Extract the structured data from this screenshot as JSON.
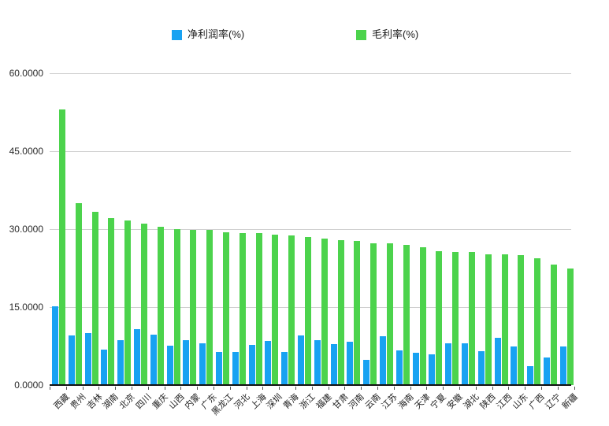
{
  "legend": {
    "items": [
      {
        "label": "净利润率(%)",
        "color": "#18a2f2"
      },
      {
        "label": "毛利率(%)",
        "color": "#4cd34c"
      }
    ]
  },
  "chart_data": {
    "type": "bar",
    "title": "",
    "xlabel": "",
    "ylabel": "",
    "ylim": [
      0,
      60
    ],
    "y_ticks": [
      "60.0000",
      "45.0000",
      "30.0000",
      "15.0000",
      "0.0000"
    ],
    "grid": true,
    "legend_position": "top",
    "categories": [
      "西藏",
      "贵州",
      "吉林",
      "湖南",
      "北京",
      "四川",
      "重庆",
      "山西",
      "内蒙",
      "广东",
      "黑龙江",
      "河北",
      "上海",
      "深圳",
      "青海",
      "浙江",
      "福建",
      "甘肃",
      "河南",
      "云南",
      "江苏",
      "海南",
      "天津",
      "宁夏",
      "安徽",
      "湖北",
      "陕西",
      "江西",
      "山东",
      "广西",
      "辽宁",
      "新疆"
    ],
    "series": [
      {
        "name": "净利润率(%)",
        "color": "#18a2f2",
        "values": [
          15.2,
          9.6,
          10.0,
          6.8,
          8.7,
          10.7,
          9.7,
          7.6,
          8.7,
          8.0,
          6.3,
          6.4,
          7.7,
          8.5,
          6.4,
          9.5,
          8.6,
          7.9,
          8.3,
          4.8,
          9.4,
          6.6,
          6.2,
          5.9,
          8.1,
          8.0,
          6.5,
          9.1,
          7.5,
          3.6,
          5.3,
          7.4
        ]
      },
      {
        "name": "毛利率(%)",
        "color": "#4cd34c",
        "values": [
          53.0,
          35.0,
          33.4,
          32.1,
          31.7,
          31.1,
          30.4,
          30.0,
          29.9,
          29.8,
          29.4,
          29.2,
          29.2,
          28.9,
          28.8,
          28.5,
          28.2,
          27.9,
          27.8,
          27.3,
          27.2,
          26.9,
          26.5,
          25.8,
          25.6,
          25.6,
          25.2,
          25.1,
          25.0,
          24.4,
          23.2,
          22.4
        ]
      }
    ]
  }
}
